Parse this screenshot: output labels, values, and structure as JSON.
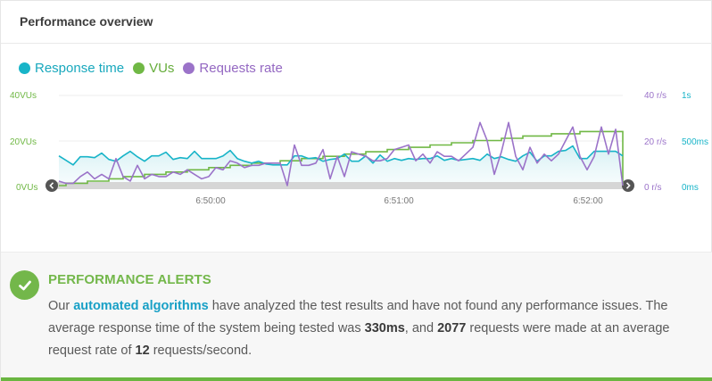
{
  "header": {
    "title": "Performance overview"
  },
  "legend": [
    {
      "label": "Response time",
      "color": "#18b4c8"
    },
    {
      "label": "VUs",
      "color": "#70b845"
    },
    {
      "label": "Requests rate",
      "color": "#9b73c9"
    }
  ],
  "chart_data": {
    "type": "line",
    "axes": {
      "vus": {
        "ticks": [
          "0VUs",
          "20VUs",
          "40VUs"
        ],
        "range": [
          0,
          40
        ],
        "color": "#70b845"
      },
      "rate": {
        "ticks": [
          "0 r/s",
          "20 r/s",
          "40 r/s"
        ],
        "range": [
          0,
          40
        ],
        "color": "#9b73c9"
      },
      "response": {
        "ticks": [
          "0ms",
          "500ms",
          "1s"
        ],
        "range": [
          0,
          1000
        ],
        "color": "#18b4c8"
      }
    },
    "x_ticks": [
      "6:50:00",
      "6:51:00",
      "6:52:00"
    ],
    "series": [
      {
        "name": "Response time",
        "unit": "ms",
        "color": "#18b4c8",
        "values": [
          330,
          280,
          230,
          320,
          320,
          310,
          360,
          290,
          270,
          330,
          380,
          320,
          270,
          330,
          330,
          370,
          290,
          310,
          300,
          380,
          300,
          300,
          300,
          330,
          390,
          300,
          270,
          250,
          270,
          240,
          230,
          230,
          230,
          330,
          330,
          300,
          310,
          270,
          290,
          300,
          350,
          270,
          270,
          330,
          250,
          340,
          270,
          300,
          280,
          300,
          290,
          300,
          300,
          330,
          280,
          300,
          280,
          290,
          300,
          280,
          350,
          300,
          320,
          290,
          270,
          330,
          370,
          270,
          330,
          330,
          380,
          390,
          440,
          300,
          300,
          380,
          380,
          380,
          380,
          330
        ]
      },
      {
        "name": "VUs",
        "unit": "VUs",
        "color": "#70b845",
        "values": [
          0,
          1,
          1,
          1,
          2,
          2,
          2,
          3,
          3,
          4,
          4,
          4,
          5,
          5,
          5,
          6,
          6,
          6,
          7,
          7,
          7,
          8,
          8,
          8,
          9,
          9,
          9,
          10,
          10,
          10,
          10,
          11,
          11,
          11,
          12,
          12,
          12,
          13,
          13,
          13,
          14,
          14,
          14,
          15,
          15,
          15,
          16,
          16,
          16,
          17,
          17,
          17,
          18,
          18,
          18,
          19,
          19,
          19,
          20,
          20,
          20,
          20,
          21,
          21,
          21,
          22,
          22,
          22,
          22,
          23,
          23,
          23,
          23,
          24,
          24,
          24,
          24,
          24,
          24,
          0
        ]
      },
      {
        "name": "Requests rate",
        "unit": "r/s",
        "color": "#9b73c9",
        "values": [
          2,
          1,
          1,
          4,
          6,
          3,
          5,
          3,
          12,
          4,
          2,
          9,
          3,
          5,
          4,
          4,
          6,
          5,
          7,
          5,
          3,
          4,
          8,
          7,
          11,
          10,
          8,
          9,
          9,
          10,
          10,
          10,
          0,
          18,
          9,
          9,
          10,
          16,
          3,
          13,
          4,
          15,
          14,
          13,
          11,
          11,
          12,
          16,
          17,
          18,
          11,
          14,
          10,
          15,
          13,
          13,
          11,
          14,
          17,
          28,
          20,
          5,
          15,
          28,
          13,
          7,
          17,
          10,
          14,
          11,
          14,
          20,
          26,
          13,
          7,
          13,
          26,
          14,
          25,
          0
        ]
      }
    ]
  },
  "alerts": {
    "title": "PERFORMANCE ALERTS",
    "p1": "Our ",
    "link": "automated algorithms",
    "p2": " have analyzed the test results and have not found any performance issues. The average response time of the system being tested was ",
    "avg_response": "330ms",
    "p3": ", and ",
    "requests": "2077",
    "p4": " requests were made at an average request rate of ",
    "rate": "12",
    "p5": " requests/second."
  }
}
